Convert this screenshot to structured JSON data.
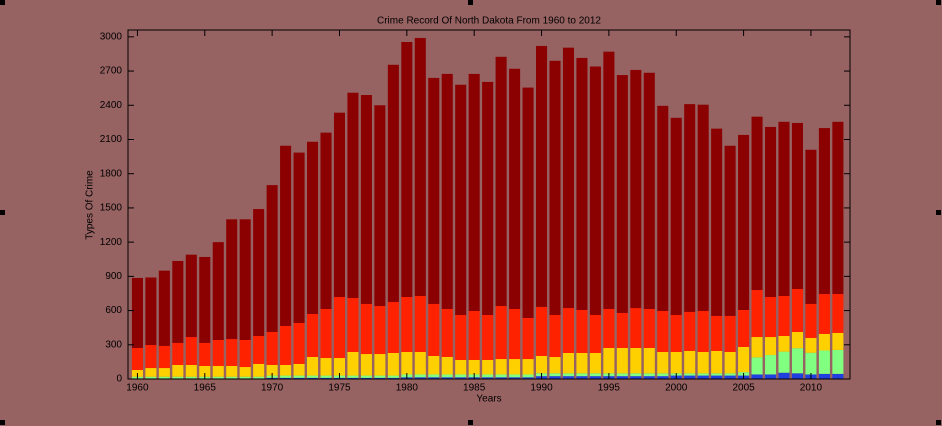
{
  "chart_data": {
    "type": "stacked_bar",
    "title": "Crime Record Of North Dakota From 1960 to 2012",
    "xlabel": "Years",
    "ylabel": "Types Of Crime",
    "x": [
      1960,
      1961,
      1962,
      1963,
      1964,
      1965,
      1966,
      1967,
      1968,
      1969,
      1970,
      1971,
      1972,
      1973,
      1974,
      1975,
      1976,
      1977,
      1978,
      1979,
      1980,
      1981,
      1982,
      1983,
      1984,
      1985,
      1986,
      1987,
      1988,
      1989,
      1990,
      1991,
      1992,
      1993,
      1994,
      1995,
      1996,
      1997,
      1998,
      1999,
      2000,
      2001,
      2002,
      2003,
      2004,
      2005,
      2006,
      2007,
      2008,
      2009,
      2010,
      2011,
      2012
    ],
    "xlim": [
      1959.3,
      2012.9
    ],
    "xticks": [
      1960,
      1965,
      1970,
      1975,
      1980,
      1985,
      1990,
      1995,
      2000,
      2005,
      2010
    ],
    "ylim": [
      0,
      3060
    ],
    "yticks": [
      0,
      300,
      600,
      900,
      1200,
      1500,
      1800,
      2100,
      2400,
      2700,
      3000
    ],
    "series": [
      {
        "color": "#2040e0",
        "values": [
          5,
          5,
          5,
          5,
          5,
          5,
          5,
          5,
          5,
          5,
          10,
          10,
          10,
          10,
          10,
          10,
          10,
          10,
          10,
          10,
          15,
          15,
          15,
          15,
          15,
          15,
          15,
          15,
          15,
          15,
          25,
          25,
          25,
          25,
          25,
          25,
          25,
          25,
          25,
          25,
          30,
          30,
          30,
          30,
          30,
          30,
          40,
          40,
          55,
          50,
          40,
          45,
          45
        ]
      },
      {
        "color": "#80ff80",
        "values": [
          15,
          15,
          15,
          15,
          15,
          15,
          15,
          15,
          15,
          15,
          20,
          20,
          20,
          20,
          20,
          20,
          20,
          20,
          20,
          20,
          25,
          25,
          25,
          25,
          25,
          25,
          25,
          25,
          25,
          25,
          25,
          25,
          25,
          25,
          25,
          25,
          25,
          25,
          25,
          25,
          20,
          20,
          20,
          20,
          20,
          30,
          150,
          170,
          185,
          220,
          190,
          205,
          210
        ]
      },
      {
        "color": "#ffd000",
        "values": [
          59,
          76,
          76,
          103,
          103,
          94,
          94,
          94,
          85,
          112,
          93,
          93,
          102,
          163,
          154,
          154,
          207,
          189,
          189,
          198,
          197,
          197,
          162,
          153,
          127,
          127,
          127,
          135,
          135,
          135,
          152,
          143,
          178,
          178,
          178,
          222,
          222,
          222,
          222,
          187,
          187,
          196,
          187,
          196,
          187,
          221,
          178,
          158,
          137,
          142,
          130,
          145,
          149
        ]
      },
      {
        "color": "#ff2200",
        "values": [
          193,
          202,
          194,
          193,
          245,
          202,
          228,
          236,
          237,
          245,
          289,
          342,
          359,
          377,
          430,
          535,
          473,
          439,
          421,
          447,
          482,
          491,
          456,
          421,
          394,
          429,
          394,
          465,
          439,
          360,
          430,
          368,
          394,
          377,
          333,
          342,
          307,
          350,
          342,
          359,
          324,
          342,
          359,
          307,
          316,
          324,
          412,
          351,
          351,
          377,
          298,
          350,
          341
        ]
      },
      {
        "color": "#8b0000",
        "values": [
          614,
          592,
          660,
          719,
          722,
          754,
          858,
          1050,
          1058,
          1113,
          1288,
          1580,
          1494,
          1510,
          1546,
          1616,
          1800,
          1832,
          1760,
          2080,
          2236,
          2262,
          1982,
          2061,
          2019,
          2079,
          2044,
          2185,
          2106,
          2020,
          2288,
          2229,
          2283,
          2210,
          2179,
          2256,
          2086,
          2088,
          2071,
          1799,
          1729,
          1822,
          1809,
          1642,
          1492,
          1535,
          1520,
          1491,
          1527,
          1456,
          1352,
          1455,
          1510
        ]
      }
    ]
  }
}
